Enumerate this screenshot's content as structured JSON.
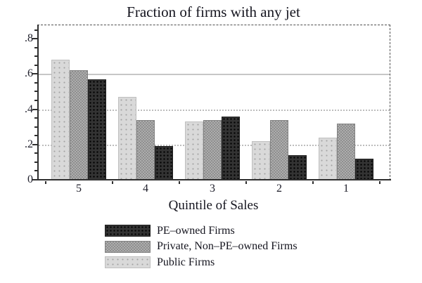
{
  "chart_data": {
    "type": "bar",
    "title": "Fraction of firms with any jet",
    "xlabel": "Quintile of Sales",
    "ylabel": "",
    "categories": [
      "5",
      "4",
      "3",
      "2",
      "1"
    ],
    "series": [
      {
        "key": "pe",
        "name": "PE–owned Firms",
        "color": "#333333",
        "values": [
          0.57,
          0.19,
          0.36,
          0.14,
          0.12
        ]
      },
      {
        "key": "private",
        "name": "Private, Non–PE–owned Firms",
        "color": "#9e9e9e",
        "values": [
          0.62,
          0.34,
          0.34,
          0.34,
          0.32
        ]
      },
      {
        "key": "public",
        "name": "Public Firms",
        "color": "#d9d9d9",
        "values": [
          0.68,
          0.47,
          0.33,
          0.22,
          0.24
        ]
      }
    ],
    "bar_order": [
      "public",
      "private",
      "pe"
    ],
    "y_ticks": [
      {
        "value": 0,
        "label": "0"
      },
      {
        "value": 0.2,
        "label": ".2"
      },
      {
        "value": 0.4,
        "label": ".4"
      },
      {
        "value": 0.6,
        "label": ".6"
      },
      {
        "value": 0.8,
        "label": ".8"
      }
    ],
    "minor_tick_step": 0.05,
    "gridline_values": [
      0.2,
      0.4,
      0.6
    ],
    "ylim": [
      0,
      0.88
    ],
    "grid": true,
    "legend_position": "bottom-left"
  },
  "colors": {
    "axis": "#2f2f2f",
    "grid": "#c6c6c6",
    "text": "#14141e",
    "background": "#ffffff"
  }
}
